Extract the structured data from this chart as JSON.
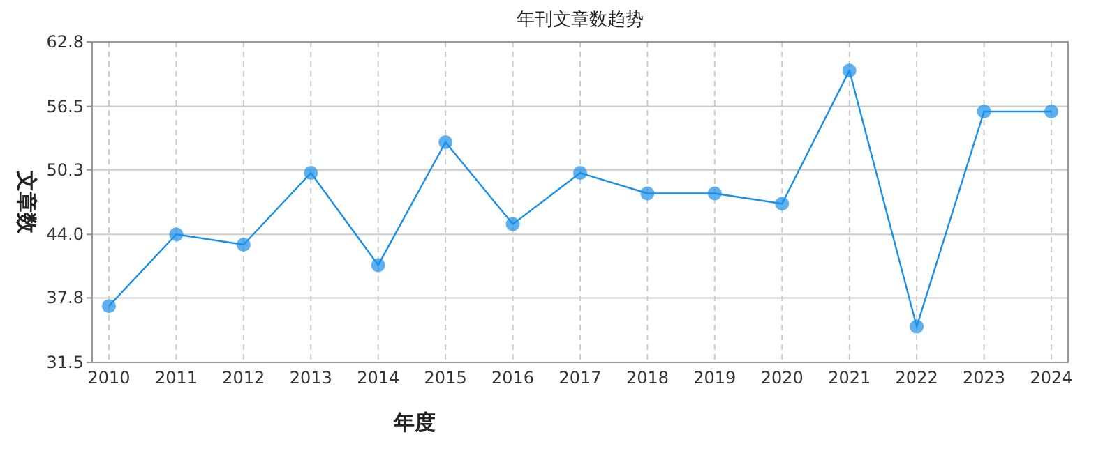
{
  "chart_data": {
    "type": "line",
    "title": "年刊文章数趋势",
    "xlabel": "年度",
    "ylabel": "文章数",
    "categories": [
      "2010",
      "2011",
      "2012",
      "2013",
      "2014",
      "2015",
      "2016",
      "2017",
      "2018",
      "2019",
      "2020",
      "2021",
      "2022",
      "2023",
      "2024"
    ],
    "series": [
      {
        "color": "#1a8fe8",
        "values": [
          37,
          44,
          43,
          50,
          41,
          53,
          45,
          50,
          48,
          48,
          47,
          60,
          35,
          56,
          56
        ]
      }
    ],
    "ylim": [
      31.5,
      62.8
    ],
    "yticks": [
      31.5,
      {
        "value": 37.8,
        "label": "37.8"
      },
      {
        "value": 44.0,
        "label": "44.0"
      },
      {
        "value": 50.3,
        "label": "50.3"
      },
      {
        "value": 56.5,
        "label": "56.5"
      },
      {
        "value": 62.8,
        "label": "62.8"
      }
    ],
    "grid": true,
    "marker": "circle",
    "line_style": "solid"
  }
}
